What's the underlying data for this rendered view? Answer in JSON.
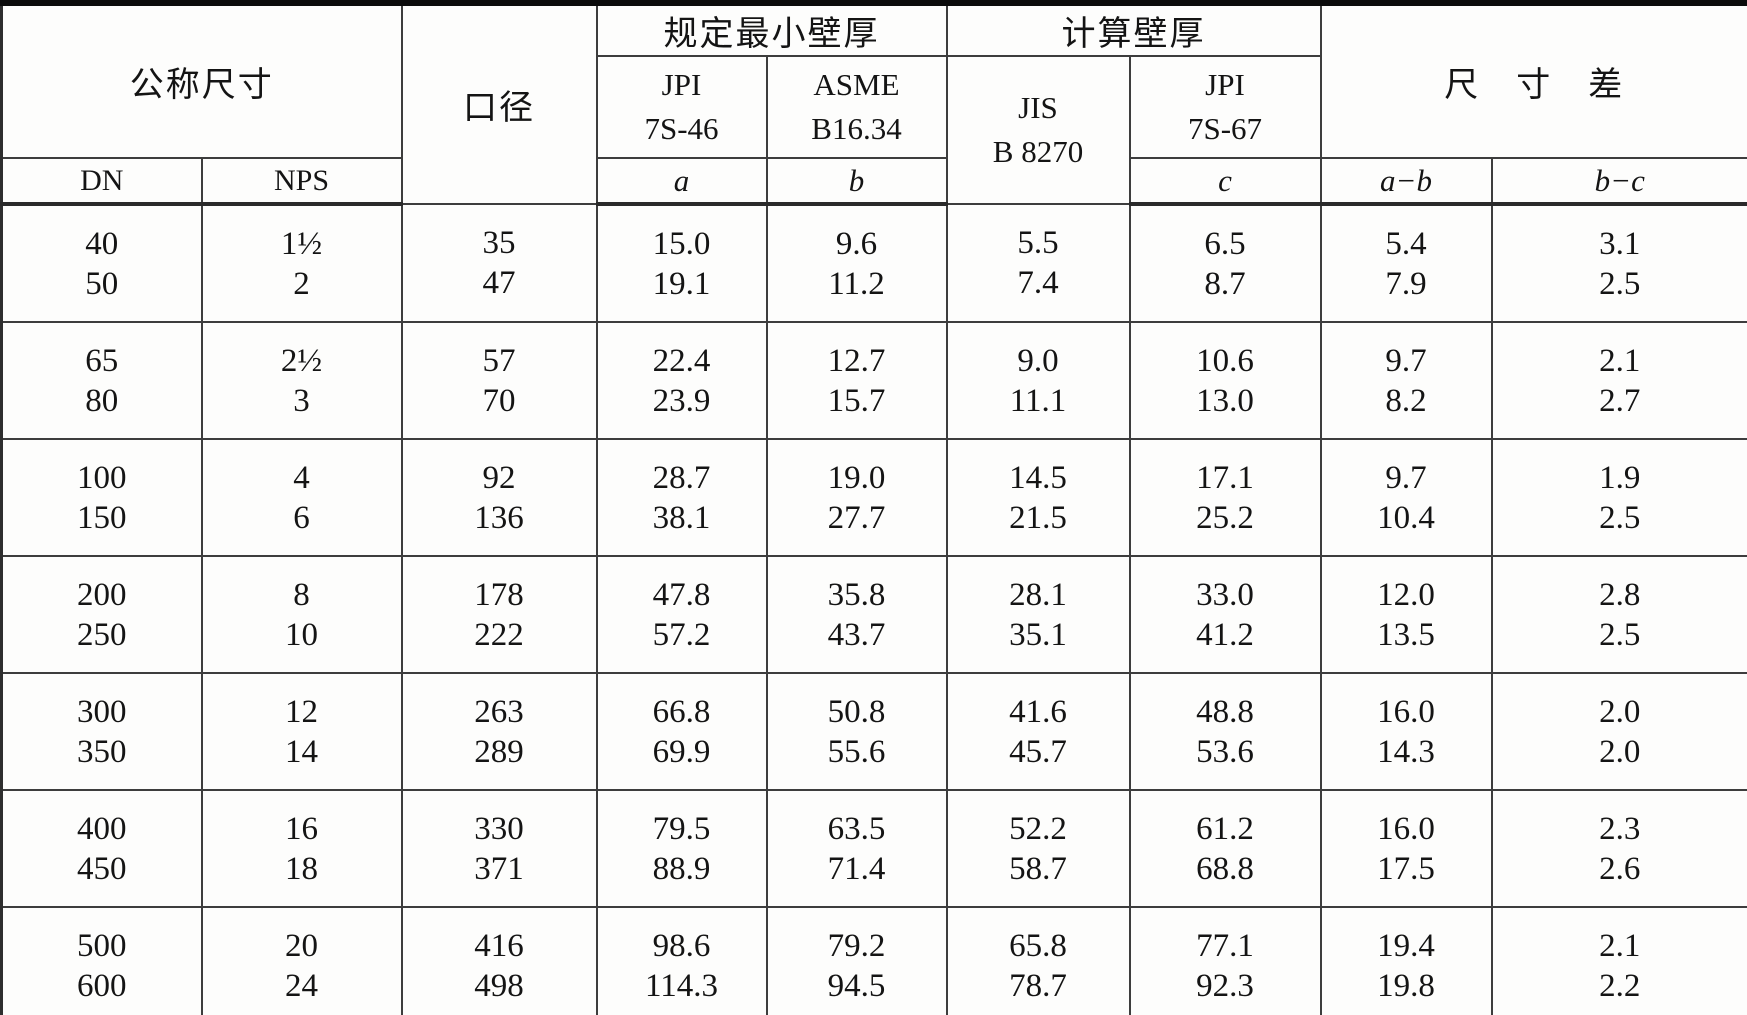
{
  "table": {
    "header": {
      "nominal_size": "公称尺寸",
      "dn": "DN",
      "nps": "NPS",
      "bore": "口径",
      "spec_min_wall": "规定最小壁厚",
      "jpi_7s46": [
        "JPI",
        "7S-46"
      ],
      "asme": [
        "ASME",
        "B16.34"
      ],
      "a": "a",
      "b": "b",
      "calc_wall": "计算壁厚",
      "jis": [
        "JIS",
        "B 8270"
      ],
      "jpi_7s67": [
        "JPI",
        "7S-67"
      ],
      "c": "c",
      "dim_diff": "尺　寸　差",
      "a_minus_b": "a−b",
      "b_minus_c": "b−c"
    },
    "groups": [
      [
        [
          "40",
          "1½",
          "35",
          "15.0",
          "9.6",
          "5.5",
          "6.5",
          "5.4",
          "3.1"
        ],
        [
          "50",
          "2",
          "47",
          "19.1",
          "11.2",
          "7.4",
          "8.7",
          "7.9",
          "2.5"
        ]
      ],
      [
        [
          "65",
          "2½",
          "57",
          "22.4",
          "12.7",
          "9.0",
          "10.6",
          "9.7",
          "2.1"
        ],
        [
          "80",
          "3",
          "70",
          "23.9",
          "15.7",
          "11.1",
          "13.0",
          "8.2",
          "2.7"
        ]
      ],
      [
        [
          "100",
          "4",
          "92",
          "28.7",
          "19.0",
          "14.5",
          "17.1",
          "9.7",
          "1.9"
        ],
        [
          "150",
          "6",
          "136",
          "38.1",
          "27.7",
          "21.5",
          "25.2",
          "10.4",
          "2.5"
        ]
      ],
      [
        [
          "200",
          "8",
          "178",
          "47.8",
          "35.8",
          "28.1",
          "33.0",
          "12.0",
          "2.8"
        ],
        [
          "250",
          "10",
          "222",
          "57.2",
          "43.7",
          "35.1",
          "41.2",
          "13.5",
          "2.5"
        ]
      ],
      [
        [
          "300",
          "12",
          "263",
          "66.8",
          "50.8",
          "41.6",
          "48.8",
          "16.0",
          "2.0"
        ],
        [
          "350",
          "14",
          "289",
          "69.9",
          "55.6",
          "45.7",
          "53.6",
          "14.3",
          "2.0"
        ]
      ],
      [
        [
          "400",
          "16",
          "330",
          "79.5",
          "63.5",
          "52.2",
          "61.2",
          "16.0",
          "2.3"
        ],
        [
          "450",
          "18",
          "371",
          "88.9",
          "71.4",
          "58.7",
          "68.8",
          "17.5",
          "2.6"
        ]
      ],
      [
        [
          "500",
          "20",
          "416",
          "98.6",
          "79.2",
          "65.8",
          "77.1",
          "19.4",
          "2.1"
        ],
        [
          "600",
          "24",
          "498",
          "114.3",
          "94.5",
          "78.7",
          "92.3",
          "19.8",
          "2.2"
        ]
      ]
    ]
  }
}
